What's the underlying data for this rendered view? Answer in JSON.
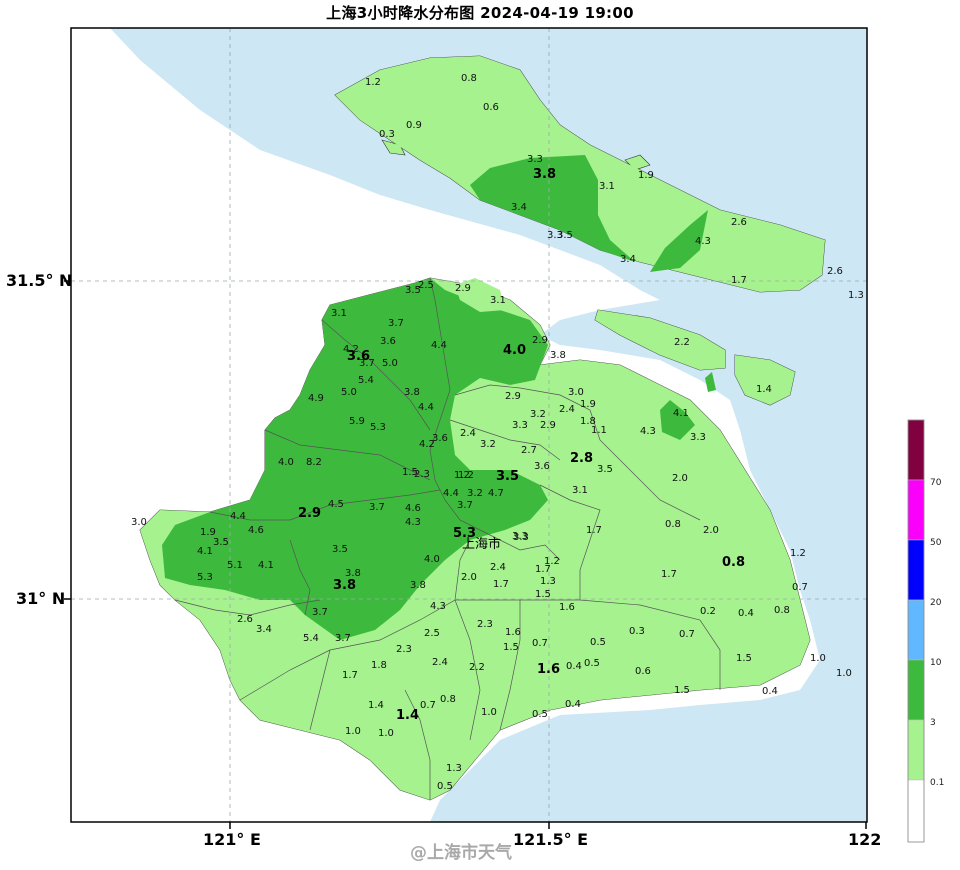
{
  "title": "上海3小时降水分布图 2024-04-19 19:00",
  "city_label": "上海市",
  "watermark": "@上海市天气",
  "axes": {
    "lat_labels": [
      "31.5° N",
      "31° N"
    ],
    "lon_labels": [
      "121° E",
      "121.5° E",
      "122"
    ]
  },
  "colors": {
    "sea": "#cde7f4",
    "land": "#ffffff",
    "rain_0_1": "#a6f28f",
    "rain_3": "#3dba3d",
    "rain_10": "#61b8ff",
    "rain_20": "#0000fe",
    "rain_50": "#fa00fa",
    "rain_70": "#800040"
  },
  "legend": {
    "levels": [
      "0.1",
      "3",
      "10",
      "20",
      "50",
      "70"
    ]
  },
  "stations": {
    "big": [
      "3.8",
      "4.0",
      "3.6",
      "2.8",
      "3.5",
      "2.9",
      "5.3",
      "0.8",
      "3.8",
      "1.6",
      "1.4"
    ],
    "small": [
      "1.2",
      "0.8",
      "0.6",
      "0.9",
      "0.3",
      "3.3",
      "3.1",
      "1.9",
      "3.4",
      "3.3",
      "3.5",
      "3.4",
      "4.3",
      "2.6",
      "1.7",
      "2.6",
      "1.3",
      "3.5",
      "2.5",
      "2.9",
      "3.1",
      "3.1",
      "3.7",
      "3.6",
      "4.4",
      "2.9",
      "3.8",
      "4.2",
      "3.7",
      "5.0",
      "5.4",
      "4.9",
      "5.0",
      "3.8",
      "4.4",
      "2.2",
      "1.4",
      "3.0",
      "2.9",
      "1.9",
      "3.2",
      "2.4",
      "1.8",
      "1.1",
      "3.3",
      "2.9",
      "4.1",
      "4.3",
      "3.3",
      "5.9",
      "5.3",
      "2.4",
      "3.6",
      "4.2",
      "3.2",
      "2.7",
      "1.2",
      "4.0",
      "8.2",
      "1.5",
      "2.3",
      "1.2",
      "3.6",
      "3.5",
      "3.1",
      "2.0",
      "4.4",
      "3.2",
      "4.7",
      "3.7",
      "4.5",
      "3.7",
      "4.6",
      "4.3",
      "3.3",
      "1.7",
      "0.8",
      "2.0",
      "3.0",
      "4.4",
      "1.9",
      "4.6",
      "3.5",
      "1.2",
      "4.1",
      "5.1",
      "3.5",
      "4.1",
      "5.3",
      "3.8",
      "4.0",
      "2.4",
      "1.7",
      "1.3",
      "1.2",
      "1.7",
      "0.7",
      "3.3",
      "3.8",
      "2.0",
      "1.7",
      "1.5",
      "1.6",
      "4.3",
      "0.2",
      "0.4",
      "0.8",
      "2.6",
      "3.4",
      "3.7",
      "2.3",
      "1.6",
      "0.7",
      "0.5",
      "0.3",
      "0.7",
      "5.4",
      "3.7",
      "2.5",
      "1.5",
      "0.4",
      "1.5",
      "1.0",
      "1.0",
      "1.8",
      "2.3",
      "2.4",
      "2.2",
      "0.5",
      "0.6",
      "1.7",
      "1.5",
      "0.4",
      "1.4",
      "0.7",
      "0.8",
      "1.0",
      "0.5",
      "0.4",
      "1.0",
      "1.0",
      "1.3",
      "0.5"
    ]
  }
}
